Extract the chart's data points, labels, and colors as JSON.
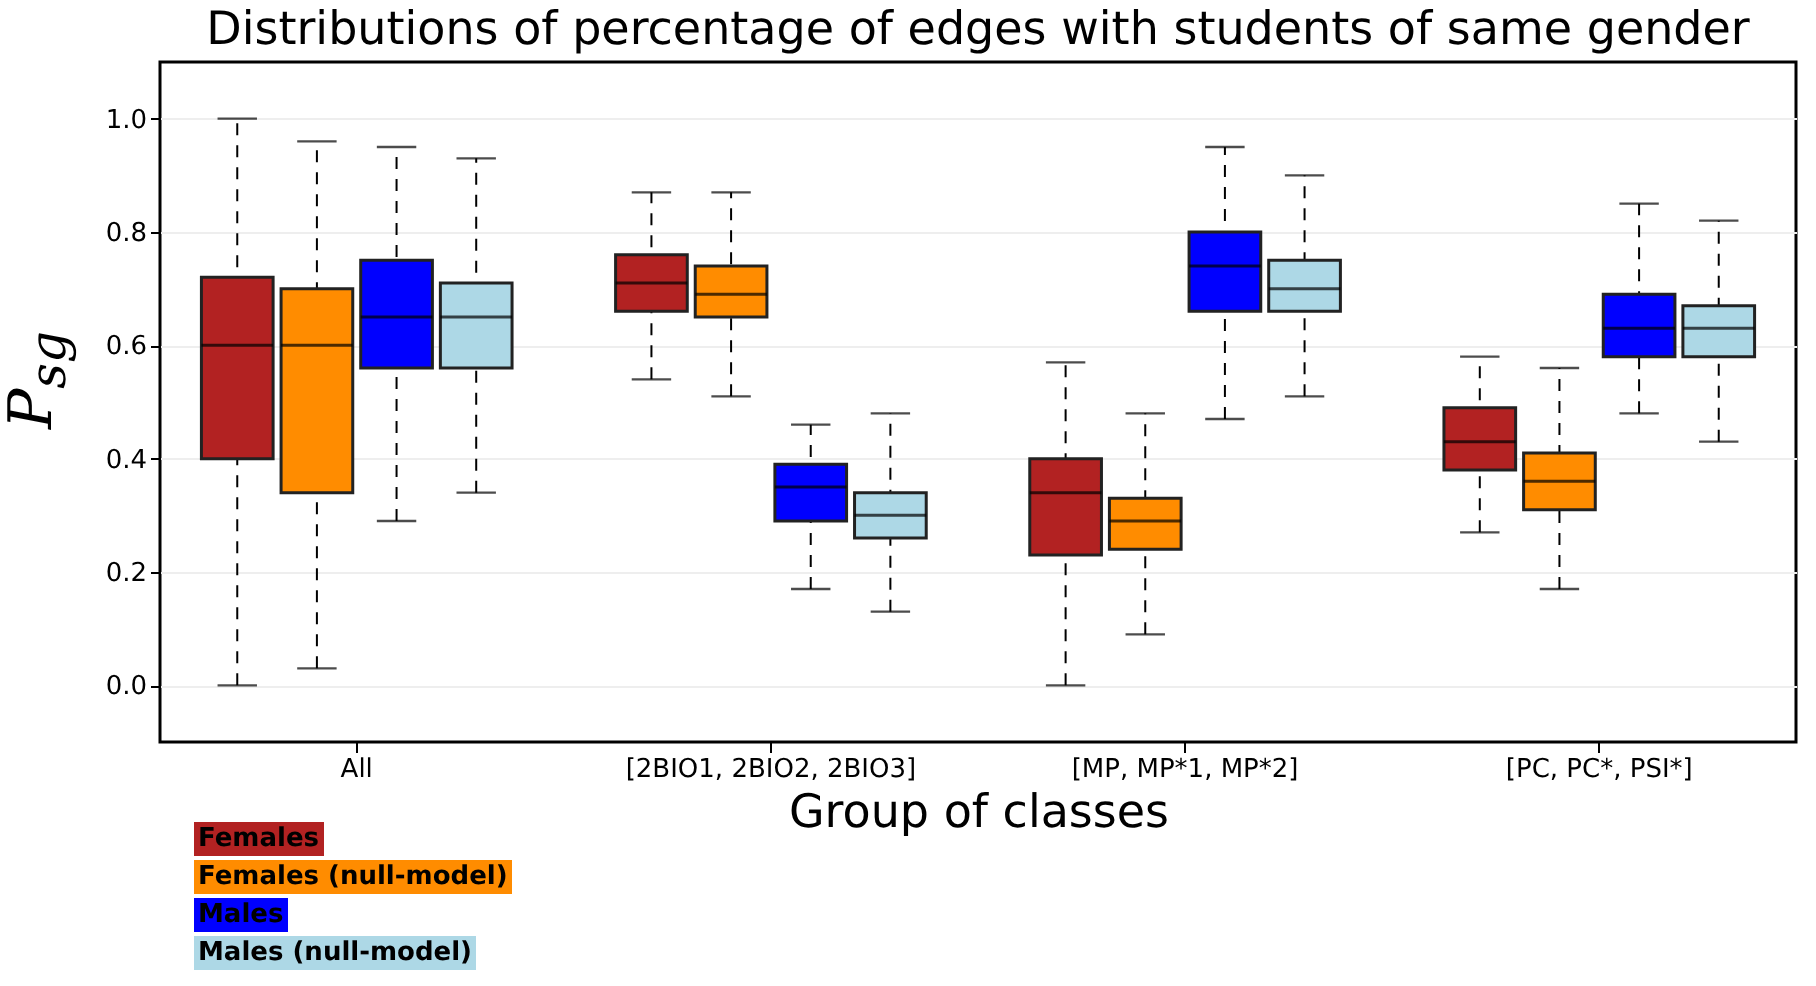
{
  "chart_data": {
    "type": "box",
    "title": "Distributions of percentage of edges with students of same gender",
    "xlabel": "Group of classes",
    "ylabel": "P$_{sg}$",
    "categories": [
      "All",
      "[2BIO1, 2BIO2, 2BIO3]",
      "[MP, MP*1, MP*2]",
      "[PC, PC*, PSI*]"
    ],
    "ylim": [
      -0.1,
      1.1
    ],
    "yticks": [
      {
        "value": 0,
        "label": "0.0"
      },
      {
        "value": 0.2,
        "label": "0.2"
      },
      {
        "value": 0.4,
        "label": "0.4"
      },
      {
        "value": 0.6,
        "label": "0.6"
      },
      {
        "value": 0.8,
        "label": "0.8"
      },
      {
        "value": 1,
        "label": "1.0"
      }
    ],
    "grid": "y",
    "legend": "bottom left",
    "series": [
      {
        "name": "Females",
        "color": "#b22222",
        "boxes": [
          {
            "low": 0.0,
            "q1": 0.4,
            "median": 0.6,
            "q3": 0.72,
            "high": 1.0
          },
          {
            "low": 0.54,
            "q1": 0.66,
            "median": 0.71,
            "q3": 0.76,
            "high": 0.87
          },
          {
            "low": 0.0,
            "q1": 0.23,
            "median": 0.34,
            "q3": 0.4,
            "high": 0.57
          },
          {
            "low": 0.27,
            "q1": 0.38,
            "median": 0.43,
            "q3": 0.49,
            "high": 0.58
          }
        ]
      },
      {
        "name": "Females (null-model)",
        "color": "#ff8c00",
        "boxes": [
          {
            "low": 0.03,
            "q1": 0.34,
            "median": 0.6,
            "q3": 0.7,
            "high": 0.96
          },
          {
            "low": 0.51,
            "q1": 0.65,
            "median": 0.69,
            "q3": 0.74,
            "high": 0.87
          },
          {
            "low": 0.09,
            "q1": 0.24,
            "median": 0.29,
            "q3": 0.33,
            "high": 0.48
          },
          {
            "low": 0.17,
            "q1": 0.31,
            "median": 0.36,
            "q3": 0.41,
            "high": 0.56
          }
        ]
      },
      {
        "name": "Males",
        "color": "#0000ff",
        "boxes": [
          {
            "low": 0.29,
            "q1": 0.56,
            "median": 0.65,
            "q3": 0.75,
            "high": 0.95
          },
          {
            "low": 0.17,
            "q1": 0.29,
            "median": 0.35,
            "q3": 0.39,
            "high": 0.46
          },
          {
            "low": 0.47,
            "q1": 0.66,
            "median": 0.74,
            "q3": 0.8,
            "high": 0.95
          },
          {
            "low": 0.48,
            "q1": 0.58,
            "median": 0.63,
            "q3": 0.69,
            "high": 0.85
          }
        ]
      },
      {
        "name": "Males (null-model)",
        "color": "#add8e6",
        "boxes": [
          {
            "low": 0.34,
            "q1": 0.56,
            "median": 0.65,
            "q3": 0.71,
            "high": 0.93
          },
          {
            "low": 0.13,
            "q1": 0.26,
            "median": 0.3,
            "q3": 0.34,
            "high": 0.48
          },
          {
            "low": 0.51,
            "q1": 0.66,
            "median": 0.7,
            "q3": 0.75,
            "high": 0.9
          },
          {
            "low": 0.43,
            "q1": 0.58,
            "median": 0.63,
            "q3": 0.67,
            "high": 0.82
          }
        ]
      }
    ]
  }
}
